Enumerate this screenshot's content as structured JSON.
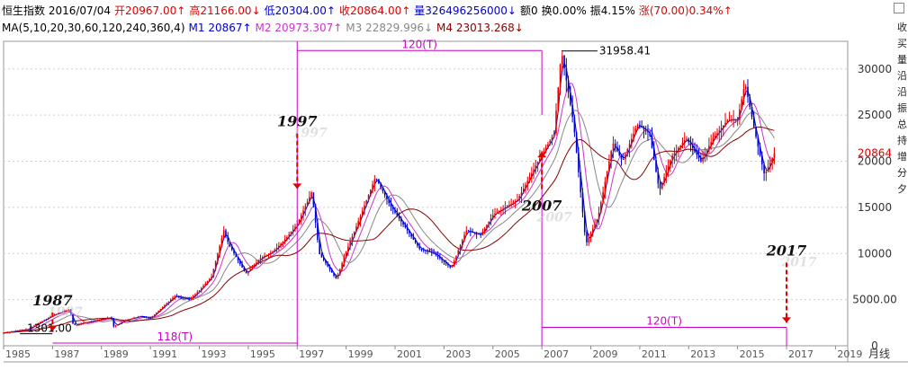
{
  "header": {
    "row1": [
      {
        "text": "恒生指数 2016/07/04",
        "color": "#000000"
      },
      {
        "text": "开20967.00↑",
        "color": "#e00000"
      },
      {
        "text": "高21166.00↓",
        "color": "#e00000"
      },
      {
        "text": "低20304.00↑",
        "color": "#0000cc"
      },
      {
        "text": "收20864.00↑",
        "color": "#e00000"
      },
      {
        "text": "量326496256000↓",
        "color": "#0000cc"
      },
      {
        "text": "额0",
        "color": "#000000"
      },
      {
        "text": "换0.00%",
        "color": "#000000"
      },
      {
        "text": "振4.15%",
        "color": "#000000"
      },
      {
        "text": "涨(70.00)0.34%↑",
        "color": "#e00000"
      }
    ],
    "row2": [
      {
        "text": "MA(5,10,20,30,60,120,240,360,4)",
        "color": "#000000"
      },
      {
        "text": "M1 20867↑",
        "color": "#0000cc"
      },
      {
        "text": "M2 20973.307↑",
        "color": "#cc33cc"
      },
      {
        "text": "M3 22829.996↓",
        "color": "#888888"
      },
      {
        "text": "M4 23013.268↓",
        "color": "#880000"
      }
    ]
  },
  "right_strip": [
    "收",
    "买",
    "量",
    "沿",
    "沿",
    "振",
    "总",
    "持",
    "增",
    "分",
    "夕"
  ],
  "chart_data": {
    "type": "candlestick",
    "title": "恒生指数",
    "x_ticks": [
      "1985",
      "1987",
      "1989",
      "1991",
      "1993",
      "1995",
      "1997",
      "1999",
      "2001",
      "2003",
      "2005",
      "2007",
      "2009",
      "2011",
      "2013",
      "2015",
      "2017",
      "2019"
    ],
    "x_range": [
      1985,
      2019.5
    ],
    "y_ticks": [
      "0",
      "5000.00",
      "10000",
      "15000",
      "20000",
      "25000",
      "30000"
    ],
    "y_range": [
      0,
      33000
    ],
    "period_label": "月线",
    "last_price_label": "20864",
    "last_price": 20864,
    "peak_label": "31958.41",
    "peak": {
      "x": 2007.8,
      "y": 31958.41
    },
    "low_label": "1301.00",
    "low": {
      "x": 1985.3,
      "y": 1301
    },
    "price_path": [
      [
        1985.0,
        1400
      ],
      [
        1986.0,
        1800
      ],
      [
        1987.0,
        3300
      ],
      [
        1987.7,
        3950
      ],
      [
        1987.85,
        2200
      ],
      [
        1988.5,
        2600
      ],
      [
        1989.4,
        3100
      ],
      [
        1989.5,
        2100
      ],
      [
        1990.0,
        2800
      ],
      [
        1990.6,
        3200
      ],
      [
        1991.0,
        3000
      ],
      [
        1992.0,
        5400
      ],
      [
        1992.6,
        5000
      ],
      [
        1993.0,
        6000
      ],
      [
        1993.5,
        7500
      ],
      [
        1994.0,
        12500
      ],
      [
        1994.2,
        11000
      ],
      [
        1994.9,
        7800
      ],
      [
        1995.5,
        9500
      ],
      [
        1996.0,
        10200
      ],
      [
        1996.5,
        11500
      ],
      [
        1997.0,
        13200
      ],
      [
        1997.6,
        16700
      ],
      [
        1997.9,
        10000
      ],
      [
        1998.6,
        7200
      ],
      [
        1999.0,
        10200
      ],
      [
        1999.5,
        13500
      ],
      [
        2000.2,
        18300
      ],
      [
        2000.8,
        15200
      ],
      [
        2001.5,
        12500
      ],
      [
        2002.0,
        10500
      ],
      [
        2002.6,
        10000
      ],
      [
        2003.3,
        8400
      ],
      [
        2003.9,
        12500
      ],
      [
        2004.5,
        12000
      ],
      [
        2005.0,
        14200
      ],
      [
        2006.0,
        15800
      ],
      [
        2006.8,
        19800
      ],
      [
        2007.5,
        23000
      ],
      [
        2007.8,
        31958
      ],
      [
        2008.3,
        24000
      ],
      [
        2008.8,
        11000
      ],
      [
        2009.3,
        14000
      ],
      [
        2009.9,
        22000
      ],
      [
        2010.3,
        20000
      ],
      [
        2010.9,
        24000
      ],
      [
        2011.4,
        23000
      ],
      [
        2011.8,
        16800
      ],
      [
        2012.3,
        20500
      ],
      [
        2012.9,
        22500
      ],
      [
        2013.5,
        20000
      ],
      [
        2014.0,
        22500
      ],
      [
        2014.6,
        24500
      ],
      [
        2015.0,
        24500
      ],
      [
        2015.3,
        28500
      ],
      [
        2015.8,
        22000
      ],
      [
        2016.1,
        18500
      ],
      [
        2016.5,
        20864
      ]
    ],
    "ma_series": [
      {
        "name": "M1",
        "color": "#0000cc"
      },
      {
        "name": "M2",
        "color": "#cc33cc"
      },
      {
        "name": "M3",
        "color": "#888888"
      },
      {
        "name": "M4",
        "color": "#880000"
      }
    ],
    "annotations": [
      {
        "label": "1987",
        "year": 1987.0,
        "arrow_from": 3600,
        "arrow_to": 1600
      },
      {
        "label": "1997",
        "year": 1997.0,
        "arrow_from": 23000,
        "arrow_to": 17000
      },
      {
        "label": "2007",
        "year": 2007.0,
        "arrow_from": 17000,
        "arrow_to": 21000
      },
      {
        "label": "2017",
        "year": 2017.0,
        "arrow_from": 9000,
        "arrow_to": 2500
      }
    ],
    "intervals": [
      {
        "label": "118(T)",
        "from": 1987.0,
        "to": 1997.0,
        "y": 0
      },
      {
        "label": "120(T)",
        "from": 2007.0,
        "to": 2017.0,
        "y": 2000
      },
      {
        "label": "120(T)",
        "from": 1997.0,
        "to": 2007.0,
        "y": 32000
      }
    ]
  }
}
